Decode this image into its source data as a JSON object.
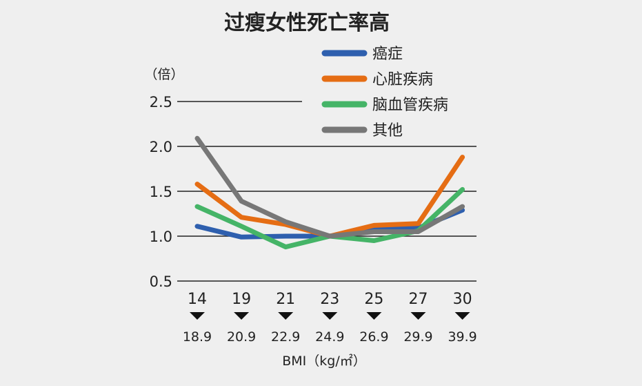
{
  "chart_data": {
    "type": "line",
    "title": "过瘦女性死亡率高",
    "ylabel": "（倍）",
    "xlabel": "BMI（kg/㎡）",
    "ylim": [
      0.5,
      2.5
    ],
    "yticks": [
      "0.5",
      "1.0",
      "1.5",
      "2.0",
      "2.5"
    ],
    "categories_top": [
      "14",
      "19",
      "21",
      "23",
      "25",
      "27",
      "30"
    ],
    "categories_bottom": [
      "18.9",
      "20.9",
      "22.9",
      "24.9",
      "26.9",
      "29.9",
      "39.9"
    ],
    "grid": true,
    "legend_position": "top-right",
    "series": [
      {
        "name": "癌症",
        "color": "#2e5fae",
        "values": [
          1.11,
          0.99,
          1.0,
          1.0,
          1.07,
          1.09,
          1.29
        ]
      },
      {
        "name": "心脏疾病",
        "color": "#e56d14",
        "values": [
          1.58,
          1.21,
          1.13,
          1.0,
          1.12,
          1.14,
          1.88
        ]
      },
      {
        "name": "脑血管疾病",
        "color": "#45b467",
        "values": [
          1.33,
          1.11,
          0.88,
          1.0,
          0.95,
          1.06,
          1.52
        ]
      },
      {
        "name": "其他",
        "color": "#777777",
        "values": [
          2.09,
          1.39,
          1.16,
          1.0,
          1.05,
          1.05,
          1.33
        ]
      }
    ]
  }
}
